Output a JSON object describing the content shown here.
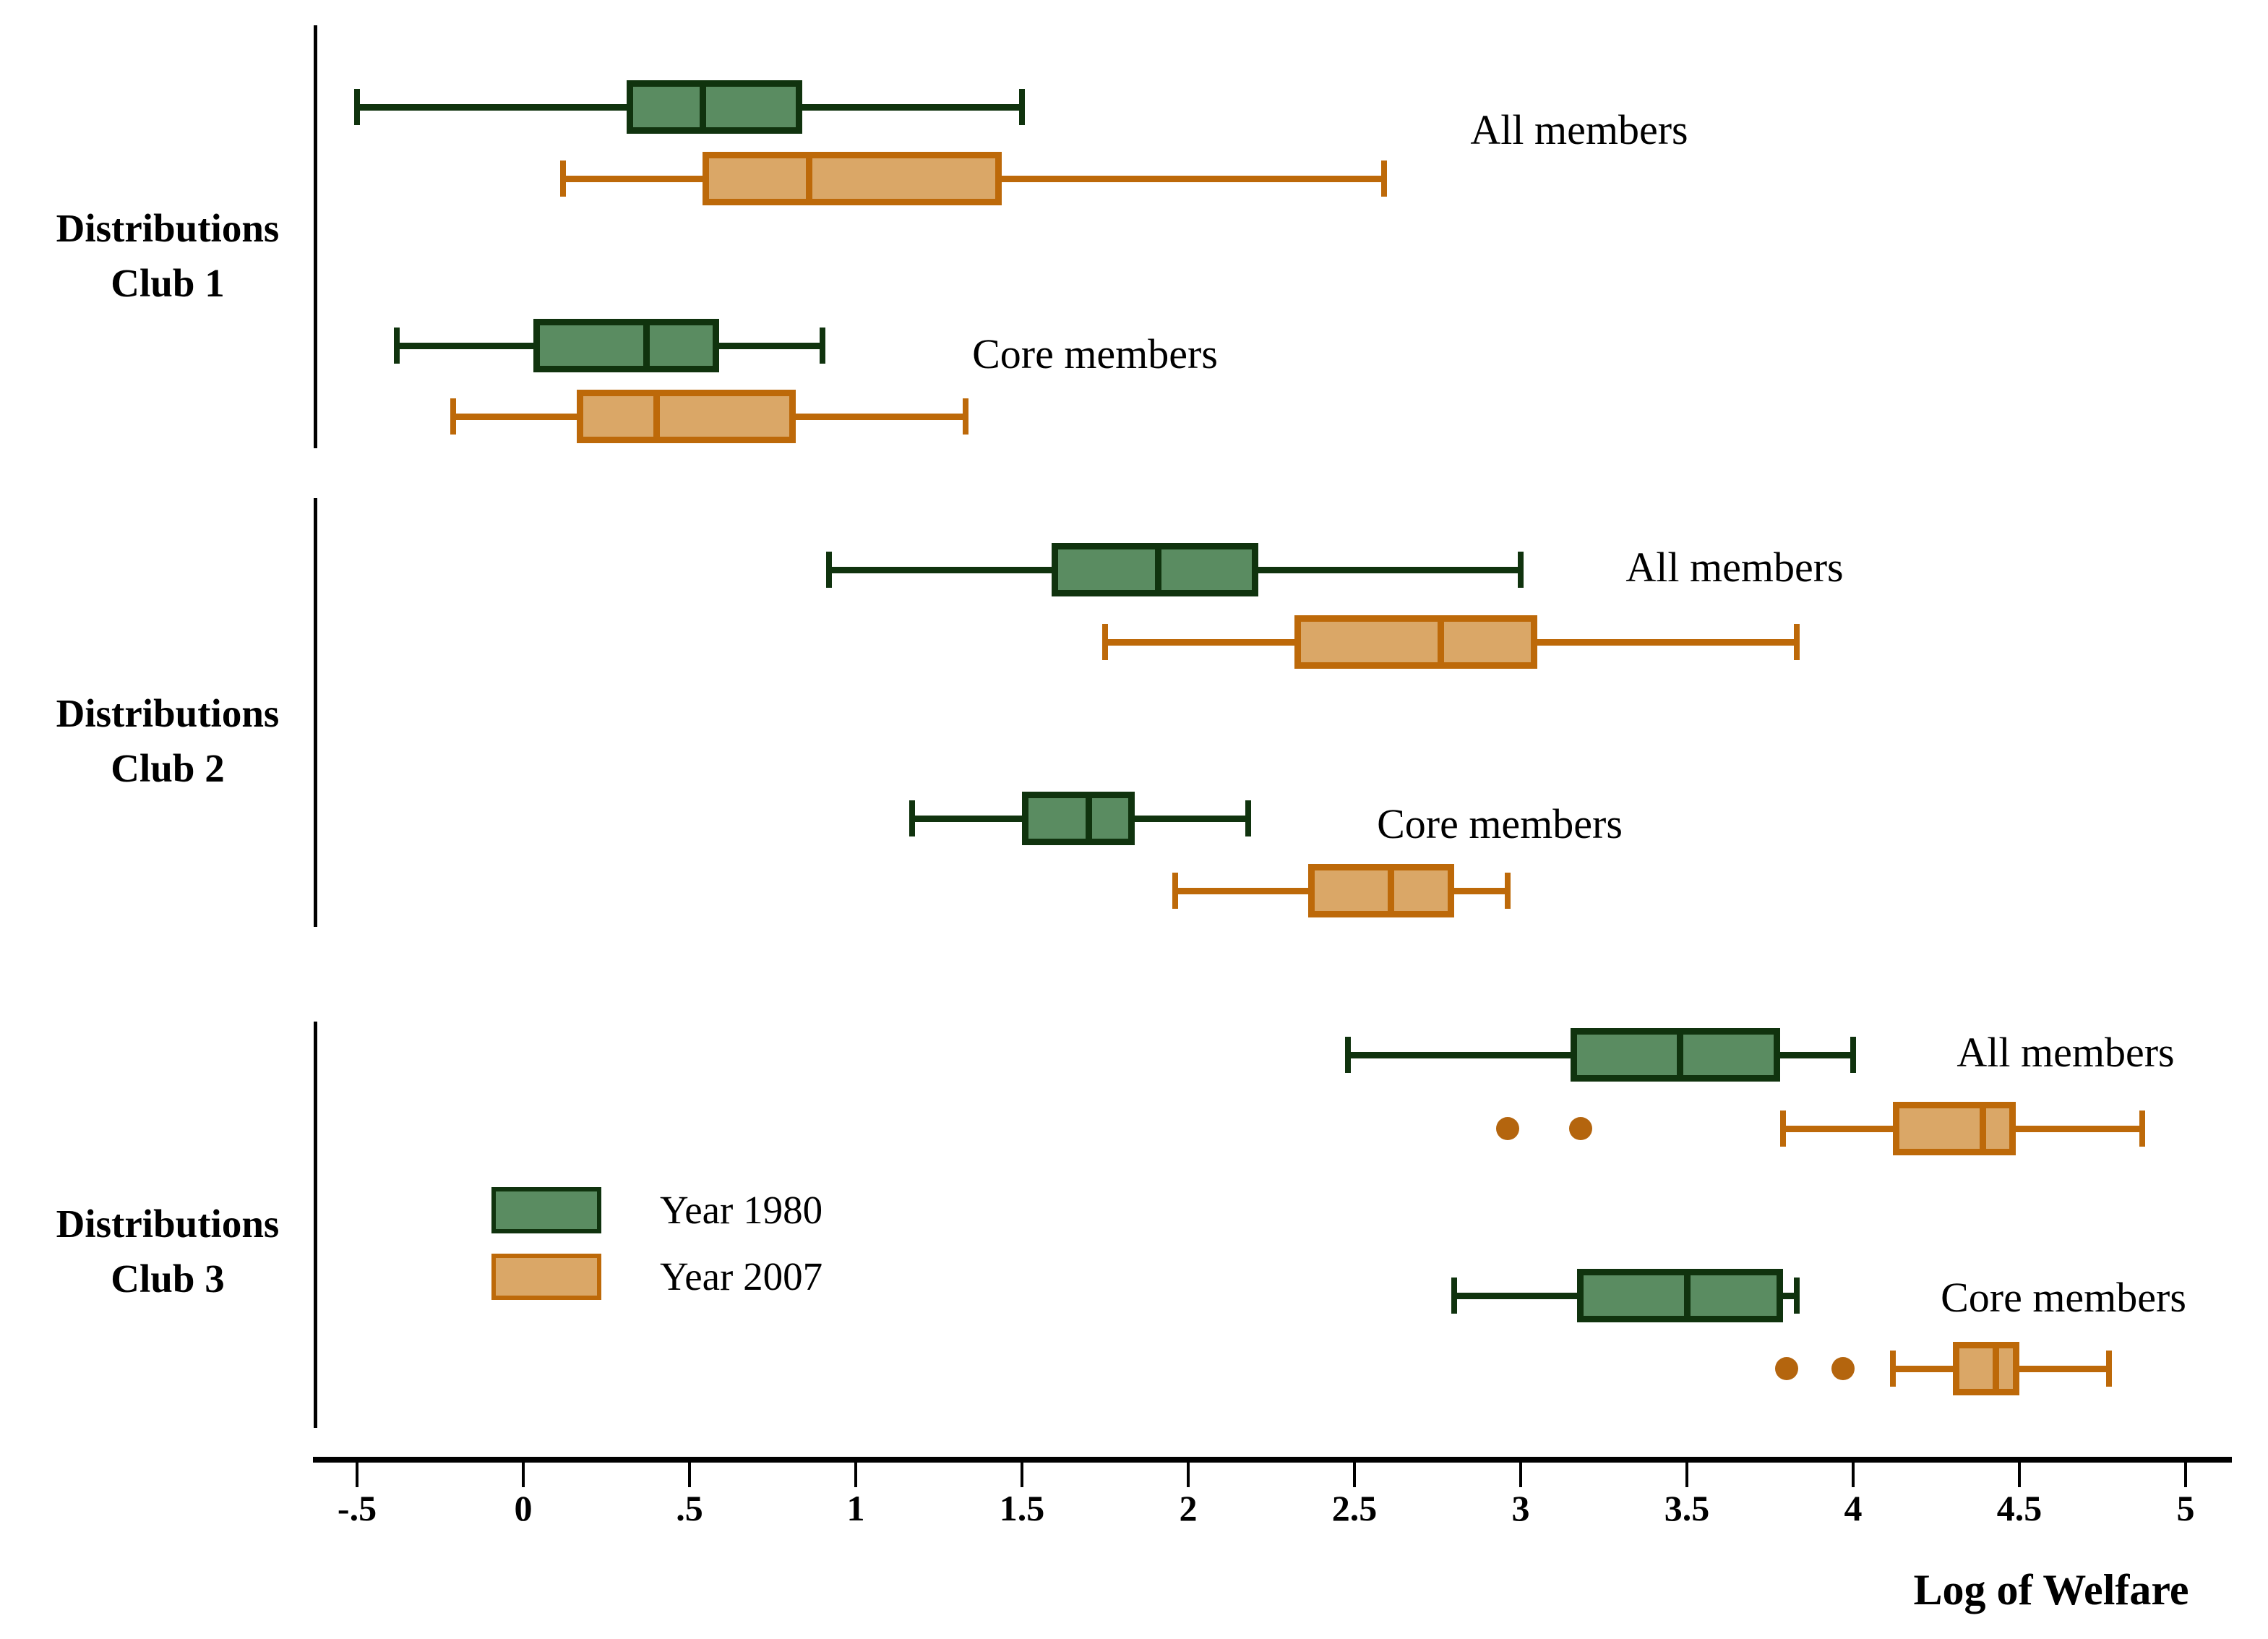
{
  "figure": {
    "background": "#ffffff"
  },
  "colors": {
    "y1980": {
      "fill": "#5a8c61",
      "stroke": "#10330e"
    },
    "y2007": {
      "fill": "#daa767",
      "stroke": "#bd6909"
    },
    "outlier": "#b4650e",
    "axis": "#000000",
    "text": "#000000"
  },
  "chart_data": {
    "type": "boxplot-horizontal",
    "xlabel": "Log of Welfare",
    "x_ticks": {
      "labels": [
        "-.5",
        "0",
        ".5",
        "1",
        "1.5",
        "2",
        "2.5",
        "3",
        "3.5",
        "4",
        "4.5",
        "5"
      ],
      "values": [
        -0.5,
        0,
        0.5,
        1,
        1.5,
        2,
        2.5,
        3,
        3.5,
        4,
        4.5,
        5
      ]
    },
    "xlim": [
      -0.75,
      5.25
    ],
    "legend": [
      {
        "label": "Year 1980",
        "color_key": "y1980"
      },
      {
        "label": "Year 2007",
        "color_key": "y2007"
      }
    ],
    "groups": [
      {
        "name": "Distributions Club 1",
        "label_lines": [
          "Distributions",
          "Club 1"
        ],
        "subgroups": [
          {
            "name": "All members",
            "boxes": [
              {
                "series": "Year 1980",
                "whisker_low": -0.5,
                "q1": 0.31,
                "median": 0.54,
                "q3": 0.84,
                "whisker_high": 1.5,
                "outliers": []
              },
              {
                "series": "Year 2007",
                "whisker_low": 0.12,
                "q1": 0.54,
                "median": 0.86,
                "q3": 1.44,
                "whisker_high": 2.59,
                "outliers": []
              }
            ]
          },
          {
            "name": "Core members",
            "boxes": [
              {
                "series": "Year 1980",
                "whisker_low": -0.38,
                "q1": 0.03,
                "median": 0.37,
                "q3": 0.59,
                "whisker_high": 0.9,
                "outliers": []
              },
              {
                "series": "Year 2007",
                "whisker_low": -0.21,
                "q1": 0.16,
                "median": 0.4,
                "q3": 0.82,
                "whisker_high": 1.33,
                "outliers": []
              }
            ]
          }
        ]
      },
      {
        "name": "Distributions Club 2",
        "label_lines": [
          "Distributions",
          "Club 2"
        ],
        "subgroups": [
          {
            "name": "All members",
            "boxes": [
              {
                "series": "Year 1980",
                "whisker_low": 0.92,
                "q1": 1.59,
                "median": 1.91,
                "q3": 2.21,
                "whisker_high": 3.0,
                "outliers": []
              },
              {
                "series": "Year 2007",
                "whisker_low": 1.75,
                "q1": 2.32,
                "median": 2.76,
                "q3": 3.05,
                "whisker_high": 3.83,
                "outliers": []
              }
            ]
          },
          {
            "name": "Core members",
            "boxes": [
              {
                "series": "Year 1980",
                "whisker_low": 1.17,
                "q1": 1.5,
                "median": 1.7,
                "q3": 1.84,
                "whisker_high": 2.18,
                "outliers": []
              },
              {
                "series": "Year 2007",
                "whisker_low": 1.96,
                "q1": 2.36,
                "median": 2.61,
                "q3": 2.8,
                "whisker_high": 2.96,
                "outliers": []
              }
            ]
          }
        ]
      },
      {
        "name": "Distributions Club 3",
        "label_lines": [
          "Distributions",
          "Club 3"
        ],
        "subgroups": [
          {
            "name": "All members",
            "boxes": [
              {
                "series": "Year 1980",
                "whisker_low": 2.48,
                "q1": 3.15,
                "median": 3.48,
                "q3": 3.78,
                "whisker_high": 4.0,
                "outliers": []
              },
              {
                "series": "Year 2007",
                "whisker_low": 3.79,
                "q1": 4.12,
                "median": 4.39,
                "q3": 4.49,
                "whisker_high": 4.87,
                "outliers": [
                  2.96,
                  3.18
                ]
              }
            ]
          },
          {
            "name": "Core members",
            "boxes": [
              {
                "series": "Year 1980",
                "whisker_low": 2.8,
                "q1": 3.17,
                "median": 3.5,
                "q3": 3.79,
                "whisker_high": 3.83,
                "outliers": []
              },
              {
                "series": "Year 2007",
                "whisker_low": 4.12,
                "q1": 4.3,
                "median": 4.43,
                "q3": 4.5,
                "whisker_high": 4.77,
                "outliers": [
                  3.8,
                  3.97
                ]
              }
            ]
          }
        ]
      }
    ]
  }
}
